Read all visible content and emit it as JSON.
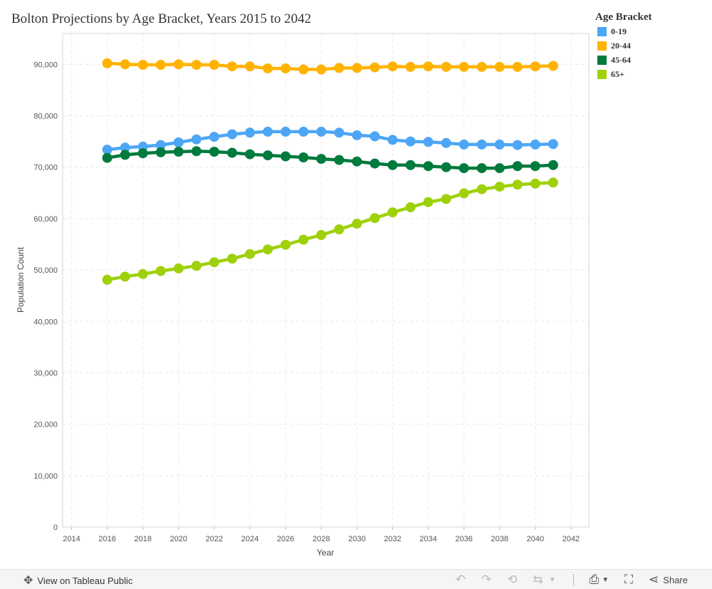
{
  "chart_data": {
    "type": "line",
    "title": "Bolton Projections by Age Bracket, Years 2015 to 2042",
    "xlabel": "Year",
    "ylabel": "Population Count",
    "xlim": [
      2013.5,
      2043
    ],
    "ylim": [
      0,
      96000
    ],
    "x_ticks": [
      2014,
      2016,
      2018,
      2020,
      2022,
      2024,
      2026,
      2028,
      2030,
      2032,
      2034,
      2036,
      2038,
      2040,
      2042
    ],
    "y_ticks": [
      0,
      10000,
      20000,
      30000,
      40000,
      50000,
      60000,
      70000,
      80000,
      90000
    ],
    "y_tick_labels": [
      "0",
      "10,000",
      "20,000",
      "30,000",
      "40,000",
      "50,000",
      "60,000",
      "70,000",
      "80,000",
      "90,000"
    ],
    "grid": true,
    "legend_title": "Age Bracket",
    "legend_position": "top-right",
    "x": [
      2016,
      2017,
      2018,
      2019,
      2020,
      2021,
      2022,
      2023,
      2024,
      2025,
      2026,
      2027,
      2028,
      2029,
      2030,
      2031,
      2032,
      2033,
      2034,
      2035,
      2036,
      2037,
      2038,
      2039,
      2040,
      2041
    ],
    "series": [
      {
        "name": "0-19",
        "color": "#4da6f5",
        "values": [
          73400,
          73800,
          74000,
          74300,
          74800,
          75400,
          75900,
          76400,
          76700,
          76900,
          76900,
          76900,
          76900,
          76700,
          76200,
          76000,
          75300,
          75000,
          74900,
          74700,
          74400,
          74400,
          74400,
          74300,
          74400,
          74500
        ]
      },
      {
        "name": "20-44",
        "color": "#ffb300",
        "values": [
          90200,
          90000,
          89900,
          89900,
          90000,
          89900,
          89900,
          89600,
          89600,
          89200,
          89200,
          89000,
          89000,
          89300,
          89300,
          89400,
          89600,
          89500,
          89600,
          89500,
          89500,
          89500,
          89500,
          89500,
          89600,
          89700
        ]
      },
      {
        "name": "45-64",
        "color": "#007a3d",
        "values": [
          71800,
          72400,
          72700,
          72900,
          73000,
          73100,
          73000,
          72800,
          72500,
          72300,
          72100,
          71900,
          71600,
          71400,
          71100,
          70700,
          70400,
          70400,
          70200,
          70000,
          69800,
          69800,
          69800,
          70200,
          70200,
          70400
        ]
      },
      {
        "name": "65+",
        "color": "#9ed10a",
        "values": [
          48100,
          48700,
          49200,
          49800,
          50300,
          50800,
          51500,
          52200,
          53100,
          54000,
          54900,
          55900,
          56800,
          57900,
          59000,
          60100,
          61200,
          62200,
          63200,
          63800,
          64900,
          65700,
          66200,
          66600,
          66800,
          67000
        ]
      }
    ]
  },
  "toolbar": {
    "view_label": "View on Tableau Public",
    "share_label": "Share"
  }
}
